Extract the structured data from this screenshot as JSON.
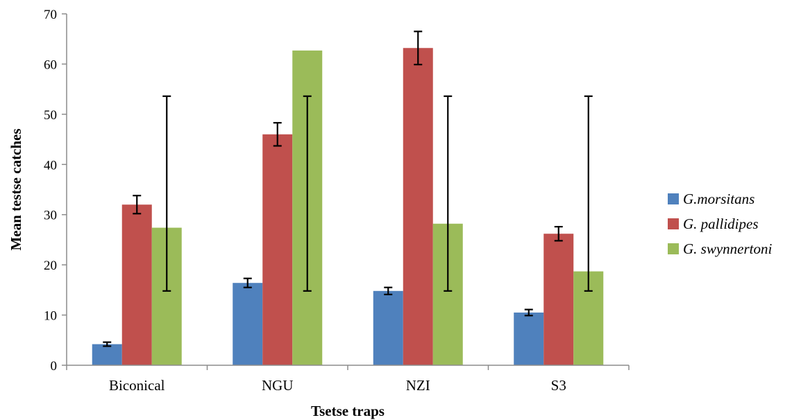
{
  "chart_data": {
    "type": "bar",
    "title": "",
    "xlabel": "Tsetse traps",
    "ylabel": "Mean testse catches",
    "ylim": [
      0,
      70
    ],
    "yticks": [
      0,
      10,
      20,
      30,
      40,
      50,
      60,
      70
    ],
    "categories": [
      "Biconical",
      "NGU",
      "NZI",
      "S3"
    ],
    "series": [
      {
        "name": "G.morsitans",
        "color": "#4f81bd",
        "values": [
          4.2,
          16.4,
          14.8,
          10.5
        ],
        "errors": [
          0.4,
          0.9,
          0.7,
          0.6
        ]
      },
      {
        "name": "G. pallidipes",
        "color": "#c0504d",
        "values": [
          32.0,
          46.0,
          63.2,
          26.2
        ],
        "errors": [
          1.8,
          2.3,
          3.3,
          1.4
        ]
      },
      {
        "name": "G. swynnertoni",
        "color": "#9bbb59",
        "values": [
          27.4,
          62.7,
          28.2,
          18.7
        ],
        "errors": null,
        "error_range": [
          14.8,
          53.6
        ]
      }
    ],
    "legend": "right",
    "grid": false
  }
}
